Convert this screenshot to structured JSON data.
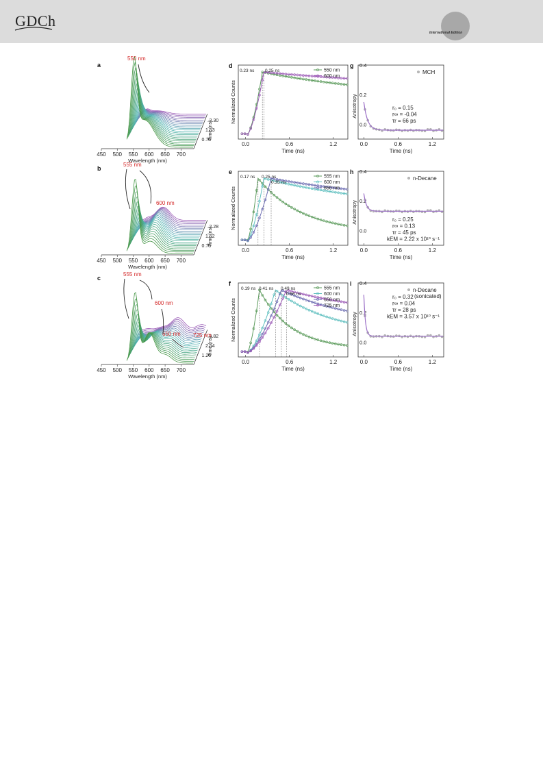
{
  "header": {
    "logo_text": "GDCh",
    "edition_text": "International Edition"
  },
  "chart_data": [
    {
      "panel": "a",
      "type": "line",
      "title": "",
      "xlabel": "Wavelength (nm)",
      "ylabel": "Time (ns)",
      "xticks": [
        "450",
        "500",
        "550",
        "600",
        "650",
        "700"
      ],
      "yticks": [
        "0.76",
        "1.53",
        "2.30"
      ],
      "annotations": [
        "550 nm"
      ],
      "peak_nm": 550
    },
    {
      "panel": "b",
      "type": "line",
      "xlabel": "Wavelength (nm)",
      "ylabel": "Time (ns)",
      "xticks": [
        "450",
        "500",
        "550",
        "600",
        "650",
        "700"
      ],
      "yticks": [
        "0.75",
        "1.52",
        "2.28"
      ],
      "annotations": [
        "555 nm",
        "600 nm"
      ]
    },
    {
      "panel": "c",
      "type": "line",
      "xlabel": "Wavelength (nm)",
      "ylabel": "Time (ns)",
      "xticks": [
        "450",
        "500",
        "550",
        "600",
        "650",
        "700"
      ],
      "yticks": [
        "1.26",
        "2.54",
        "3.82"
      ],
      "annotations": [
        "555 nm",
        "600 nm",
        "650 nm",
        "725 nm"
      ]
    },
    {
      "panel": "d",
      "type": "line",
      "xlabel": "Time (ns)",
      "ylabel": "Normalized Counts",
      "xlim": [
        -0.1,
        1.4
      ],
      "xticks": [
        "0.0",
        "0.6",
        "1.2"
      ],
      "annotations": [
        "0.23 ns",
        "0.25 ns"
      ],
      "series": [
        {
          "name": "550 nm",
          "color": "#5a9a5a",
          "peak": 0.23,
          "tail": 0.55
        },
        {
          "name": "600 nm",
          "color": "#9b59b6",
          "peak": 0.25,
          "tail": 0.68
        }
      ]
    },
    {
      "panel": "e",
      "type": "line",
      "xlabel": "Time (ns)",
      "ylabel": "Normalized Counts",
      "xlim": [
        -0.1,
        1.4
      ],
      "xticks": [
        "0.0",
        "0.6",
        "1.2"
      ],
      "annotations": [
        "0.17 ns",
        "0.25 ns",
        "0.35 ns"
      ],
      "series": [
        {
          "name": "555 nm",
          "color": "#5a9a5a",
          "peak": 0.17,
          "tail": 0.13
        },
        {
          "name": "600 nm",
          "color": "#5fbfbf",
          "peak": 0.25,
          "tail": 0.5
        },
        {
          "name": "650 nm",
          "color": "#6a6ab0",
          "peak": 0.35,
          "tail": 0.58
        }
      ]
    },
    {
      "panel": "f",
      "type": "line",
      "xlabel": "Time (ns)",
      "ylabel": "Normalized Counts",
      "xlim": [
        -0.1,
        1.4
      ],
      "xticks": [
        "0.0",
        "0.6",
        "1.2"
      ],
      "annotations": [
        "0.19 ns",
        "0.41 ns",
        "0.49 ns",
        "0.56 ns"
      ],
      "series": [
        {
          "name": "555 nm",
          "color": "#5a9a5a",
          "peak": 0.19,
          "tail": 0.06
        },
        {
          "name": "600 nm",
          "color": "#5fbfbf",
          "peak": 0.41,
          "tail": 0.28
        },
        {
          "name": "650 nm",
          "color": "#6a6ab0",
          "peak": 0.49,
          "tail": 0.42
        },
        {
          "name": "725 nm",
          "color": "#9b59b6",
          "peak": 0.56,
          "tail": 0.55
        }
      ]
    },
    {
      "panel": "g",
      "type": "scatter",
      "xlabel": "Time (ns)",
      "ylabel": "Anisotropy",
      "xlim": [
        -0.1,
        1.4
      ],
      "ylim": [
        -0.1,
        0.4
      ],
      "xticks": [
        "0.0",
        "0.6",
        "1.2"
      ],
      "yticks": [
        "0.4",
        "0.2",
        "0.0"
      ],
      "legend": "MCH",
      "fit": {
        "r0": 0.15,
        "rinf": -0.04,
        "tau": 0.066
      },
      "params": [
        "r₀ = 0.15",
        "r∞ = -0.04",
        "τr = 66 ps"
      ]
    },
    {
      "panel": "h",
      "type": "scatter",
      "xlabel": "Time (ns)",
      "ylabel": "Anisotropy",
      "xlim": [
        -0.1,
        1.4
      ],
      "ylim": [
        -0.1,
        0.4
      ],
      "xticks": [
        "0.0",
        "0.6",
        "1.2"
      ],
      "yticks": [
        "0.4",
        "0.2",
        "0.0"
      ],
      "legend": "n-Decane",
      "fit": {
        "r0": 0.25,
        "rinf": 0.13,
        "tau": 0.045
      },
      "params": [
        "r₀ = 0.25",
        "r∞ = 0.13",
        "τr = 45 ps",
        "kEM = 2.22 x 10¹⁰ s⁻¹"
      ]
    },
    {
      "panel": "i",
      "type": "scatter",
      "xlabel": "Time (ns)",
      "ylabel": "Anisotropy",
      "xlim": [
        -0.1,
        1.4
      ],
      "ylim": [
        -0.1,
        0.4
      ],
      "xticks": [
        "0.0",
        "0.6",
        "1.2"
      ],
      "yticks": [
        "0.4",
        "0.2",
        "0.0"
      ],
      "legend": "n-Decane (sonicated)",
      "fit": {
        "r0": 0.32,
        "rinf": 0.04,
        "tau": 0.028
      },
      "params": [
        "r₀ = 0.32",
        "r∞ = 0.04",
        "τr = 28 ps",
        "kEM = 3.57 x 10¹⁰ s⁻¹"
      ]
    }
  ]
}
